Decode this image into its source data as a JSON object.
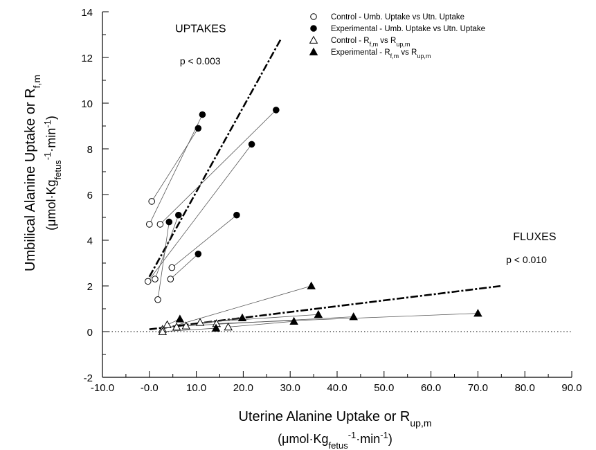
{
  "chart_data": {
    "type": "scatter",
    "title": "",
    "xlabel": {
      "line1": {
        "main": "Uterine Alanine Uptake or R",
        "sub": "up,m"
      },
      "line2": {
        "pre": "(μmol·Kg",
        "sub": "fetus",
        "sup": "-1",
        "post": "·min",
        "sup2": "-1",
        "close": ")"
      }
    },
    "ylabel": {
      "line1": {
        "main": "Umbilical Alanine Uptake or R",
        "sub": "f,m"
      },
      "line2": {
        "pre": "(μmol·Kg",
        "sub": "fetus",
        "sup": "-1",
        "post": "·min",
        "sup2": "-1",
        "close": ")"
      }
    },
    "xlim": [
      -10,
      90
    ],
    "ylim": [
      -2,
      14
    ],
    "x_ticks": [
      -10,
      0,
      10,
      20,
      30,
      40,
      50,
      60,
      70,
      80,
      90
    ],
    "x_tick_labels": [
      "-10.0",
      "-0.0",
      "10.0",
      "20.0",
      "30.0",
      "40.0",
      "50.0",
      "60.0",
      "70.0",
      "80.0",
      "90.0"
    ],
    "y_ticks": [
      -2,
      0,
      2,
      4,
      6,
      8,
      10,
      12,
      14
    ],
    "y_tick_labels": [
      "-2",
      "0",
      "2",
      "4",
      "6",
      "8",
      "10",
      "12",
      "14"
    ],
    "grid": false,
    "legend_position": "top-right",
    "legend": [
      {
        "marker": "open-circle",
        "text": "Control - Umb. Uptake vs Utn. Uptake"
      },
      {
        "marker": "filled-circle",
        "text": "Experimental - Umb. Uptake vs Utn. Uptake"
      },
      {
        "marker": "open-triangle",
        "pre": "Control - R",
        "sub1": "f,m",
        "mid": " vs R",
        "sub2": "up,m"
      },
      {
        "marker": "filled-triangle",
        "pre": "Experimental - R",
        "sub1": "f,m",
        "mid": " vs R",
        "sub2": "up,m"
      }
    ],
    "annotations": [
      {
        "text": "UPTAKES",
        "x": 5.5,
        "y": 13.1,
        "size": "large"
      },
      {
        "text": "p < 0.003",
        "x": 6.5,
        "y": 11.7,
        "size": "small"
      },
      {
        "text": "FLUXES",
        "x": 77.5,
        "y": 4.0,
        "size": "large"
      },
      {
        "text": "p < 0.010",
        "x": 76.0,
        "y": 3.0,
        "size": "small"
      }
    ],
    "regression_lines": [
      {
        "name": "uptakes-regression",
        "x": [
          0.0,
          28.0
        ],
        "y": [
          2.4,
          12.8
        ]
      },
      {
        "name": "fluxes-regression",
        "x": [
          0.0,
          75.0
        ],
        "y": [
          0.1,
          2.0
        ]
      }
    ],
    "reference_line": {
      "y": 0
    },
    "uptake_pairs": [
      {
        "control": [
          0.5,
          5.7
        ],
        "experimental": [
          10.4,
          8.9
        ]
      },
      {
        "control": [
          0.0,
          4.7
        ],
        "experimental": [
          11.3,
          9.5
        ]
      },
      {
        "control": [
          2.3,
          4.7
        ],
        "experimental": [
          27.0,
          9.7
        ]
      },
      {
        "control": [
          1.2,
          2.3
        ],
        "experimental": [
          6.2,
          5.1
        ]
      },
      {
        "control": [
          1.8,
          1.4
        ],
        "experimental": [
          4.2,
          4.8
        ]
      },
      {
        "control": [
          -0.3,
          2.2
        ],
        "experimental": [
          21.8,
          8.2
        ]
      },
      {
        "control": [
          4.8,
          2.8
        ],
        "experimental": [
          18.6,
          5.1
        ]
      },
      {
        "control": [
          4.5,
          2.3
        ],
        "experimental": [
          10.4,
          3.4
        ]
      }
    ],
    "flux_pairs": [
      {
        "control": [
          2.8,
          0.1
        ],
        "experimental": [
          34.5,
          2.0
        ]
      },
      {
        "control": [
          3.8,
          0.3
        ],
        "experimental": [
          6.5,
          0.55
        ]
      },
      {
        "control": [
          5.8,
          0.2
        ],
        "experimental": [
          19.8,
          0.6
        ]
      },
      {
        "control": [
          7.8,
          0.25
        ],
        "experimental": [
          43.5,
          0.65
        ]
      },
      {
        "control": [
          10.8,
          0.4
        ],
        "experimental": [
          36.0,
          0.75
        ]
      },
      {
        "control": [
          14.3,
          0.35
        ],
        "experimental": [
          70.0,
          0.8
        ]
      },
      {
        "control": [
          16.8,
          0.2
        ],
        "experimental": [
          30.8,
          0.45
        ]
      },
      {
        "control": [
          2.8,
          0.0
        ],
        "experimental": [
          14.2,
          0.15
        ]
      }
    ]
  }
}
